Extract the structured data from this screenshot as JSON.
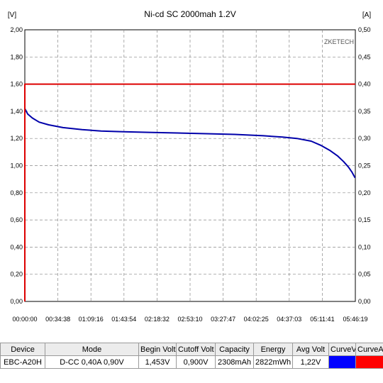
{
  "chart_data": {
    "type": "line",
    "title": "Ni-cd SC 2000mah 1.2V",
    "watermark": "ZKETECH",
    "y_left": {
      "unit": "[V]",
      "min": 0,
      "max": 2.0,
      "ticks": [
        "0,00",
        "0,20",
        "0,40",
        "0,60",
        "0,80",
        "1,00",
        "1,20",
        "1,40",
        "1,60",
        "1,80",
        "2,00"
      ]
    },
    "y_right": {
      "unit": "[A]",
      "min": 0,
      "max": 0.5,
      "ticks": [
        "0,00",
        "0,05",
        "0,10",
        "0,15",
        "0,20",
        "0,25",
        "0,30",
        "0,35",
        "0,40",
        "0,45",
        "0,50"
      ]
    },
    "x_ticks": [
      "00:00:00",
      "00:34:38",
      "01:09:16",
      "01:43:54",
      "02:18:32",
      "02:53:10",
      "03:27:47",
      "04:02:25",
      "04:37:03",
      "05:11:41",
      "05:46:19"
    ],
    "x_range_minutes": [
      0,
      346.32
    ],
    "grid": true,
    "series": [
      {
        "axis": "left",
        "color": "#0000aa",
        "x": [
          0,
          3,
          8,
          15,
          25,
          40,
          60,
          80,
          100,
          130,
          160,
          190,
          220,
          250,
          270,
          285,
          300,
          310,
          320,
          328,
          334,
          339,
          343,
          346
        ],
        "y": [
          1.42,
          1.38,
          1.35,
          1.32,
          1.3,
          1.28,
          1.265,
          1.255,
          1.25,
          1.245,
          1.24,
          1.235,
          1.23,
          1.22,
          1.21,
          1.2,
          1.18,
          1.15,
          1.11,
          1.07,
          1.03,
          0.99,
          0.95,
          0.91
        ]
      },
      {
        "axis": "right",
        "color": "#dd0000",
        "x": [
          0,
          0,
          0.4,
          346.3
        ],
        "y": [
          0.0,
          0.4,
          0.4,
          0.4
        ]
      }
    ]
  },
  "info_table": {
    "headers": [
      "Device",
      "Mode",
      "Begin Volt",
      "Cutoff Volt",
      "Capacity",
      "Energy",
      "Avg Volt",
      "CurveV",
      "CurveA"
    ],
    "values": [
      "EBC-A20H",
      "D-CC 0,40A 0,90V",
      "1,453V",
      "0,900V",
      "2308mAh",
      "2822mWh",
      "1,22V",
      "",
      ""
    ],
    "curve_colors": {
      "voltage": "#0000ff",
      "current": "#ff0000"
    }
  }
}
